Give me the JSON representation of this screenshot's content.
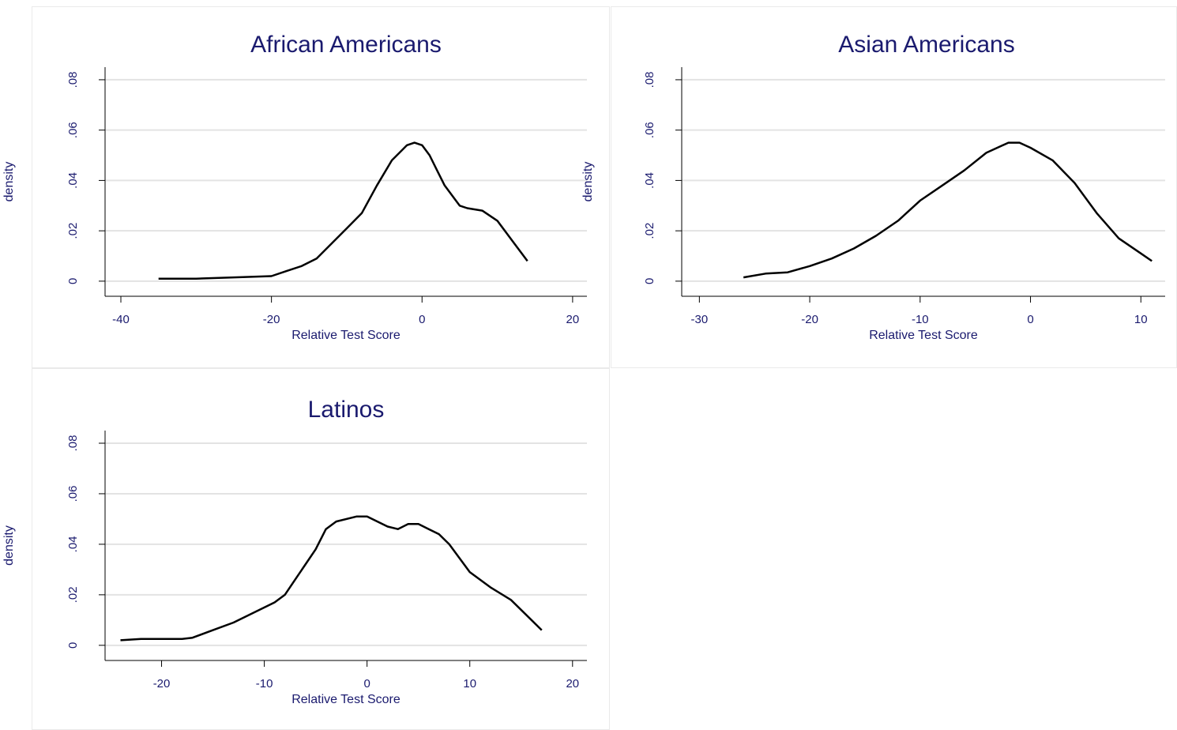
{
  "chart_data": [
    {
      "type": "line",
      "title": "African Americans",
      "x_label": "Relative Test Score",
      "y_label": "density",
      "x": [
        -35,
        -30,
        -25,
        -20,
        -18,
        -16,
        -14,
        -12,
        -10,
        -8,
        -6,
        -4,
        -2,
        -1,
        0,
        1,
        2,
        3,
        4,
        5,
        6,
        8,
        10,
        12,
        14
      ],
      "series": [
        {
          "color": "#000000",
          "values": [
            0.001,
            0.001,
            0.0015,
            0.002,
            0.004,
            0.006,
            0.009,
            0.015,
            0.021,
            0.027,
            0.038,
            0.048,
            0.054,
            0.055,
            0.054,
            0.05,
            0.044,
            0.038,
            0.034,
            0.03,
            0.029,
            0.028,
            0.024,
            0.016,
            0.008
          ]
        }
      ],
      "xlim": [
        -42.1,
        21.9
      ],
      "xticks": [
        -40,
        -20,
        0,
        20
      ],
      "ylim": [
        -0.006,
        0.085
      ],
      "yticks": [
        0,
        {
          "value": 0.02,
          "label": ".02"
        },
        {
          "value": 0.04,
          "label": ".04"
        },
        {
          "value": 0.06,
          "label": ".06"
        },
        {
          "value": 0.08,
          "label": ".08"
        }
      ],
      "grid": true
    },
    {
      "type": "line",
      "title": "Asian Americans",
      "x_label": "Relative Test Score",
      "y_label": "density",
      "x": [
        -26,
        -24,
        -22,
        -20,
        -18,
        -16,
        -14,
        -12,
        -10,
        -8,
        -6,
        -4,
        -2,
        -1,
        0,
        2,
        4,
        6,
        8,
        10,
        11
      ],
      "series": [
        {
          "color": "#000000",
          "values": [
            0.0015,
            0.003,
            0.0035,
            0.006,
            0.009,
            0.013,
            0.018,
            0.024,
            0.032,
            0.038,
            0.044,
            0.051,
            0.055,
            0.055,
            0.053,
            0.048,
            0.039,
            0.027,
            0.017,
            0.011,
            0.008
          ]
        }
      ],
      "xlim": [
        -31.6,
        12.2
      ],
      "xticks": [
        -30,
        -20,
        -10,
        0,
        10
      ],
      "ylim": [
        -0.006,
        0.085
      ],
      "yticks": [
        0,
        {
          "value": 0.02,
          "label": ".02"
        },
        {
          "value": 0.04,
          "label": ".04"
        },
        {
          "value": 0.06,
          "label": ".06"
        },
        {
          "value": 0.08,
          "label": ".08"
        }
      ],
      "grid": true
    },
    {
      "type": "line",
      "title": "Latinos",
      "x_label": "Relative Test Score",
      "y_label": "density",
      "x": [
        -24,
        -22,
        -20,
        -18,
        -17,
        -15,
        -13,
        -11,
        -9,
        -8,
        -7,
        -6,
        -5,
        -4,
        -3,
        -1,
        0,
        1,
        2,
        3,
        4,
        5,
        6,
        7,
        8,
        10,
        12,
        14,
        16,
        17
      ],
      "series": [
        {
          "color": "#000000",
          "values": [
            0.002,
            0.0025,
            0.0025,
            0.0025,
            0.003,
            0.006,
            0.009,
            0.013,
            0.017,
            0.02,
            0.026,
            0.032,
            0.038,
            0.046,
            0.049,
            0.051,
            0.051,
            0.049,
            0.047,
            0.046,
            0.048,
            0.048,
            0.046,
            0.044,
            0.04,
            0.029,
            0.023,
            0.018,
            0.01,
            0.006
          ]
        }
      ],
      "xlim": [
        -25.5,
        21.4
      ],
      "xticks": [
        -20,
        -10,
        0,
        10,
        20
      ],
      "ylim": [
        -0.006,
        0.085
      ],
      "yticks": [
        0,
        {
          "value": 0.02,
          "label": ".02"
        },
        {
          "value": 0.04,
          "label": ".04"
        },
        {
          "value": 0.06,
          "label": ".06"
        },
        {
          "value": 0.08,
          "label": ".08"
        }
      ],
      "grid": true
    }
  ]
}
